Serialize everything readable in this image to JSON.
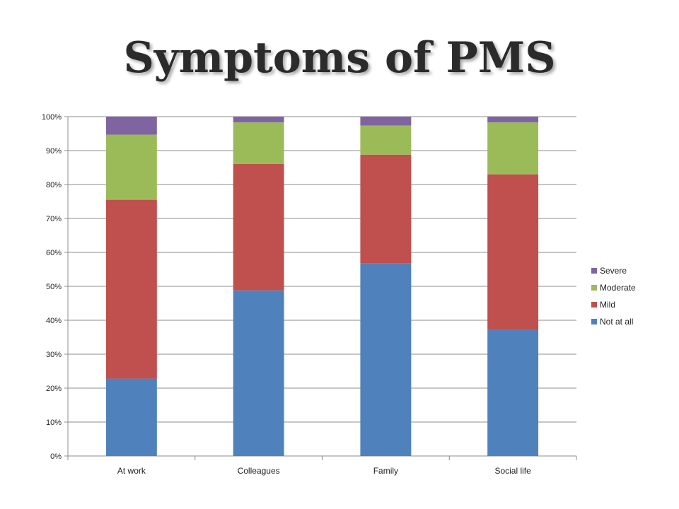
{
  "page": {
    "title": "Symptoms of PMS"
  },
  "chart_data": {
    "type": "bar",
    "stacked": true,
    "title": "Symptoms of PMS",
    "xlabel": "",
    "ylabel": "",
    "categories": [
      "At work",
      "Colleagues",
      "Family",
      "Social life"
    ],
    "series": [
      {
        "name": "Not at all",
        "color": "#4F81BD",
        "values": [
          22.8,
          48.8,
          56.8,
          37.2
        ]
      },
      {
        "name": "Mild",
        "color": "#C0504D",
        "values": [
          52.7,
          37.3,
          32.0,
          45.8
        ]
      },
      {
        "name": "Moderate",
        "color": "#9BBB59",
        "values": [
          19.2,
          12.2,
          8.6,
          15.3
        ]
      },
      {
        "name": "Severe",
        "color": "#8064A2",
        "values": [
          5.3,
          1.7,
          2.6,
          1.7
        ]
      }
    ],
    "ylim": [
      0,
      100
    ],
    "yticks": [
      0,
      10,
      20,
      30,
      40,
      50,
      60,
      70,
      80,
      90,
      100
    ],
    "ytick_labels": [
      "0%",
      "10%",
      "20%",
      "30%",
      "40%",
      "50%",
      "60%",
      "70%",
      "80%",
      "90%",
      "100%"
    ],
    "grid": true,
    "legend": {
      "placement": "right",
      "order": [
        "Severe",
        "Moderate",
        "Mild",
        "Not at all"
      ]
    }
  }
}
